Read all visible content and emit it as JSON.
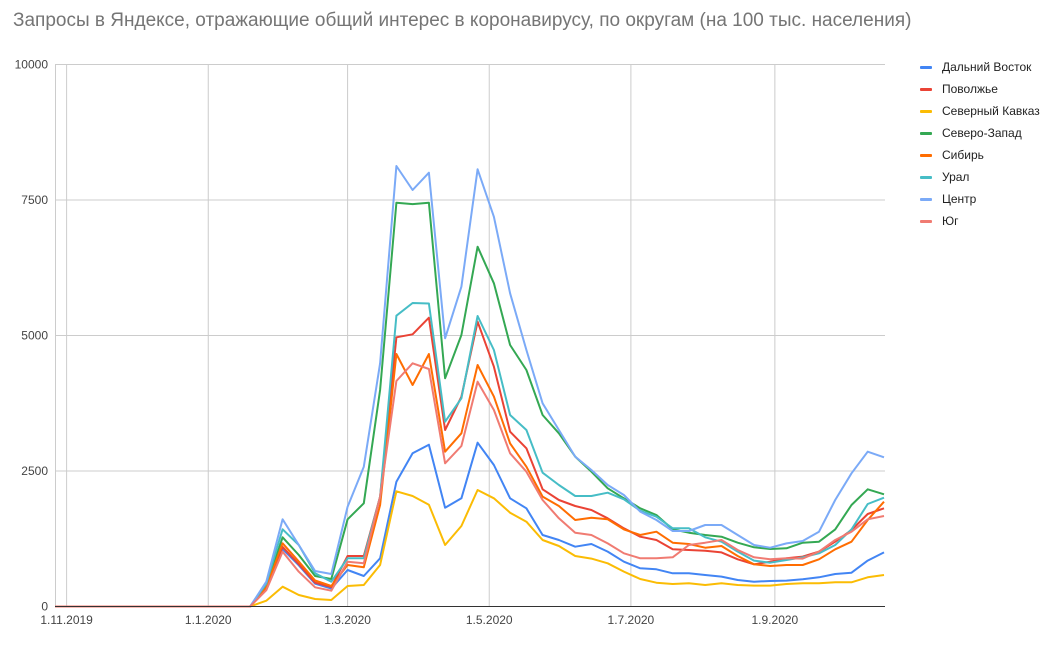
{
  "chart_data": {
    "type": "line",
    "title": "Запросы в Яндексе, отражающие общий интерес в коронавирусу, по округам (на 100 тыс. населения)",
    "xlabel": "",
    "ylabel": "",
    "ylim": [
      0,
      10000
    ],
    "y_ticks": [
      "0",
      "2500",
      "5000",
      "7500",
      "10000"
    ],
    "x_ticks": [
      {
        "date": "2019-11-01",
        "label": "1.11.2019"
      },
      {
        "date": "2020-01-01",
        "label": "1.1.2020"
      },
      {
        "date": "2020-03-01",
        "label": "1.3.2020"
      },
      {
        "date": "2020-05-01",
        "label": "1.5.2020"
      },
      {
        "date": "2020-07-01",
        "label": "1.7.2020"
      },
      {
        "date": "2020-09-01",
        "label": "1.9.2020"
      }
    ],
    "grid": true,
    "legend_position": "right",
    "x": [
      "2019-10-27",
      "2019-11-03",
      "2019-11-10",
      "2019-11-17",
      "2019-11-24",
      "2019-12-01",
      "2019-12-08",
      "2019-12-15",
      "2019-12-22",
      "2019-12-29",
      "2020-01-05",
      "2020-01-12",
      "2020-01-19",
      "2020-01-26",
      "2020-02-02",
      "2020-02-09",
      "2020-02-16",
      "2020-02-23",
      "2020-03-01",
      "2020-03-08",
      "2020-03-15",
      "2020-03-22",
      "2020-03-29",
      "2020-04-05",
      "2020-04-12",
      "2020-04-19",
      "2020-04-26",
      "2020-05-03",
      "2020-05-10",
      "2020-05-17",
      "2020-05-24",
      "2020-05-31",
      "2020-06-07",
      "2020-06-14",
      "2020-06-21",
      "2020-06-28",
      "2020-07-05",
      "2020-07-12",
      "2020-07-19",
      "2020-07-26",
      "2020-08-02",
      "2020-08-09",
      "2020-08-16",
      "2020-08-23",
      "2020-08-30",
      "2020-09-06",
      "2020-09-13",
      "2020-09-20",
      "2020-09-27",
      "2020-10-04",
      "2020-10-11",
      "2020-10-18"
    ],
    "series": [
      {
        "name": "Дальний Восток",
        "color": "#4285f4",
        "values": [
          0,
          0,
          0,
          0,
          0,
          0,
          0,
          0,
          0,
          0,
          0,
          0,
          0,
          340,
          1060,
          760,
          420,
          330,
          673,
          563,
          889,
          2303,
          2826,
          2985,
          1823,
          1996,
          3022,
          2611,
          1996,
          1811,
          1319,
          1227,
          1104,
          1153,
          1012,
          827,
          704,
          686,
          612,
          612,
          581,
          551,
          489,
          458,
          470,
          477,
          501,
          538,
          600,
          624,
          846,
          999
        ]
      },
      {
        "name": "Поволжье",
        "color": "#ea4335",
        "values": [
          0,
          0,
          0,
          0,
          0,
          0,
          0,
          0,
          0,
          0,
          0,
          0,
          0,
          340,
          1100,
          780,
          440,
          360,
          932,
          932,
          2026,
          4967,
          5022,
          5329,
          3257,
          3870,
          5255,
          4425,
          3226,
          2918,
          2162,
          1965,
          1854,
          1780,
          1627,
          1442,
          1288,
          1227,
          1055,
          1043,
          1030,
          999,
          870,
          778,
          827,
          889,
          920,
          1012,
          1196,
          1411,
          1707,
          1811
        ]
      },
      {
        "name": "Северный Кавказ",
        "color": "#fbbc04",
        "values": [
          0,
          0,
          0,
          0,
          0,
          0,
          0,
          0,
          0,
          0,
          0,
          0,
          0,
          107,
          365,
          212,
          138,
          120,
          378,
          397,
          766,
          2125,
          2039,
          1878,
          1135,
          1485,
          2149,
          1996,
          1731,
          1565,
          1227,
          1116,
          932,
          883,
          797,
          643,
          507,
          440,
          415,
          428,
          397,
          428,
          397,
          385,
          385,
          415,
          428,
          428,
          446,
          446,
          538,
          581
        ]
      },
      {
        "name": "Северо-Запад",
        "color": "#34a853",
        "values": [
          0,
          0,
          0,
          0,
          0,
          0,
          0,
          0,
          0,
          0,
          0,
          0,
          0,
          380,
          1277,
          950,
          563,
          507,
          1609,
          1904,
          3994,
          7450,
          7425,
          7450,
          4210,
          5009,
          6638,
          5963,
          4825,
          4364,
          3533,
          3195,
          2765,
          2488,
          2181,
          1996,
          1811,
          1688,
          1423,
          1362,
          1319,
          1288,
          1178,
          1092,
          1061,
          1073,
          1178,
          1196,
          1423,
          1873,
          2162,
          2070
        ]
      },
      {
        "name": "Сибирь",
        "color": "#ff6d01",
        "values": [
          0,
          0,
          0,
          0,
          0,
          0,
          0,
          0,
          0,
          0,
          0,
          0,
          0,
          350,
          1166,
          830,
          480,
          378,
          766,
          723,
          1873,
          4659,
          4087,
          4659,
          2857,
          3195,
          4456,
          3872,
          3010,
          2580,
          2027,
          1854,
          1596,
          1639,
          1608,
          1423,
          1319,
          1380,
          1178,
          1153,
          1085,
          1116,
          932,
          778,
          747,
          766,
          766,
          870,
          1055,
          1196,
          1596,
          1934
        ]
      },
      {
        "name": "Урал",
        "color": "#46bdc6",
        "values": [
          0,
          0,
          0,
          0,
          0,
          0,
          0,
          0,
          0,
          0,
          0,
          0,
          0,
          420,
          1424,
          1135,
          612,
          458,
          889,
          889,
          2026,
          5366,
          5600,
          5590,
          3410,
          3841,
          5360,
          4733,
          3533,
          3257,
          2469,
          2242,
          2039,
          2039,
          2100,
          1978,
          1768,
          1657,
          1442,
          1442,
          1276,
          1196,
          1012,
          846,
          809,
          858,
          907,
          981,
          1135,
          1423,
          1891,
          2008
        ]
      },
      {
        "name": "Центр",
        "color": "#7baaf7",
        "values": [
          0,
          0,
          0,
          0,
          0,
          0,
          0,
          0,
          0,
          0,
          0,
          0,
          0,
          458,
          1609,
          1135,
          655,
          600,
          1842,
          2580,
          4487,
          8127,
          7685,
          8004,
          4948,
          5901,
          8066,
          7190,
          5778,
          4733,
          3749,
          3257,
          2765,
          2519,
          2242,
          2057,
          1750,
          1596,
          1393,
          1393,
          1503,
          1503,
          1319,
          1135,
          1085,
          1165,
          1208,
          1380,
          1965,
          2457,
          2857,
          2752
        ]
      },
      {
        "name": "Юг",
        "color": "#f07b72",
        "values": [
          0,
          0,
          0,
          0,
          0,
          0,
          0,
          0,
          0,
          0,
          0,
          0,
          0,
          300,
          1011,
          642,
          354,
          292,
          827,
          797,
          2026,
          4161,
          4487,
          4382,
          2642,
          2961,
          4148,
          3625,
          2826,
          2488,
          1965,
          1627,
          1362,
          1319,
          1165,
          981,
          889,
          889,
          907,
          1135,
          1178,
          1227,
          1043,
          907,
          870,
          889,
          883,
          1012,
          1227,
          1380,
          1608,
          1670
        ]
      }
    ]
  }
}
